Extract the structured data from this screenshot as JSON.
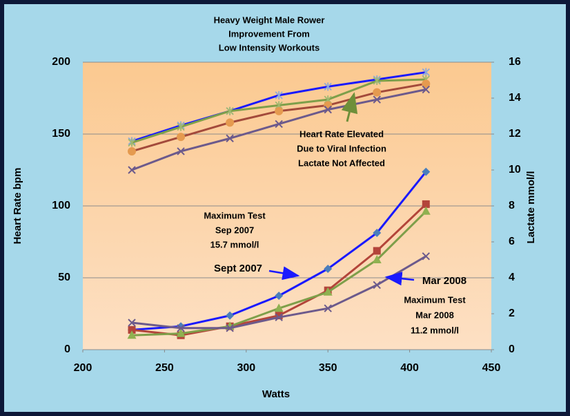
{
  "chart_data": {
    "type": "line",
    "title": [
      "Heavy Weight Male Rower",
      "Improvement From",
      "Low Intensity Workouts"
    ],
    "xlabel": "Watts",
    "ylabel": "Heart Rate bpm",
    "y2label": "Lactate mmol/l",
    "xlim": [
      200,
      450
    ],
    "xticks": [
      200,
      250,
      300,
      350,
      400,
      450
    ],
    "ylim": [
      0,
      200
    ],
    "yticks": [
      0,
      50,
      100,
      150,
      200
    ],
    "y2lim": [
      0,
      16
    ],
    "y2ticks": [
      0,
      2,
      4,
      6,
      8,
      10,
      12,
      14,
      16
    ],
    "grid": true,
    "x": [
      230,
      260,
      290,
      320,
      350,
      380,
      410
    ],
    "series": [
      {
        "color": "#1a1aff",
        "marker": "star",
        "marker_color": "#8fa8d8",
        "values": [
          145,
          156,
          166,
          177,
          183,
          188,
          193
        ]
      },
      {
        "color": "#7e9f4a",
        "marker": "star",
        "marker_color": "#9fb870",
        "values": [
          144,
          155,
          166,
          170,
          174,
          187,
          188
        ]
      },
      {
        "color": "#a34a3b",
        "marker": "circle",
        "marker_color": "#e59a4f",
        "values": [
          138,
          148,
          158,
          166,
          170,
          179,
          185
        ]
      },
      {
        "color": "#6c5a8c",
        "marker": "x",
        "marker_color": "#6c5a8c",
        "values": [
          125,
          138,
          147,
          157,
          167,
          174,
          181
        ]
      },
      {
        "color": "#1a1aff",
        "marker": "diamond",
        "marker_color": "#4a7ebb",
        "axis": "y2",
        "values": [
          1.1,
          1.3,
          1.9,
          3.0,
          4.5,
          6.5,
          9.9
        ]
      },
      {
        "color": "#b3453a",
        "marker": "square",
        "marker_color": "#b3453a",
        "axis": "y2",
        "values": [
          1.1,
          0.8,
          1.3,
          1.9,
          3.3,
          5.5,
          8.1
        ]
      },
      {
        "color": "#7e9f4a",
        "marker": "triangle",
        "marker_color": "#8fb150",
        "axis": "y2",
        "values": [
          0.8,
          0.9,
          1.3,
          2.3,
          3.2,
          5.0,
          7.7
        ]
      },
      {
        "color": "#6c5a8c",
        "marker": "x",
        "marker_color": "#6c5a8c",
        "axis": "y2",
        "values": [
          1.5,
          1.2,
          1.2,
          1.8,
          2.3,
          3.6,
          5.2
        ]
      }
    ],
    "annotations": [
      [
        "Heart Rate Elevated",
        "Due to Viral Infection",
        "Lactate Not Affected"
      ],
      [
        "Maximum Test",
        "Sep 2007",
        "15.7 mmol/l"
      ],
      [
        "Sept 2007"
      ],
      [
        "Mar 2008"
      ],
      [
        "Maximum Test",
        "Mar 2008",
        "11.2 mmol/l"
      ]
    ]
  }
}
